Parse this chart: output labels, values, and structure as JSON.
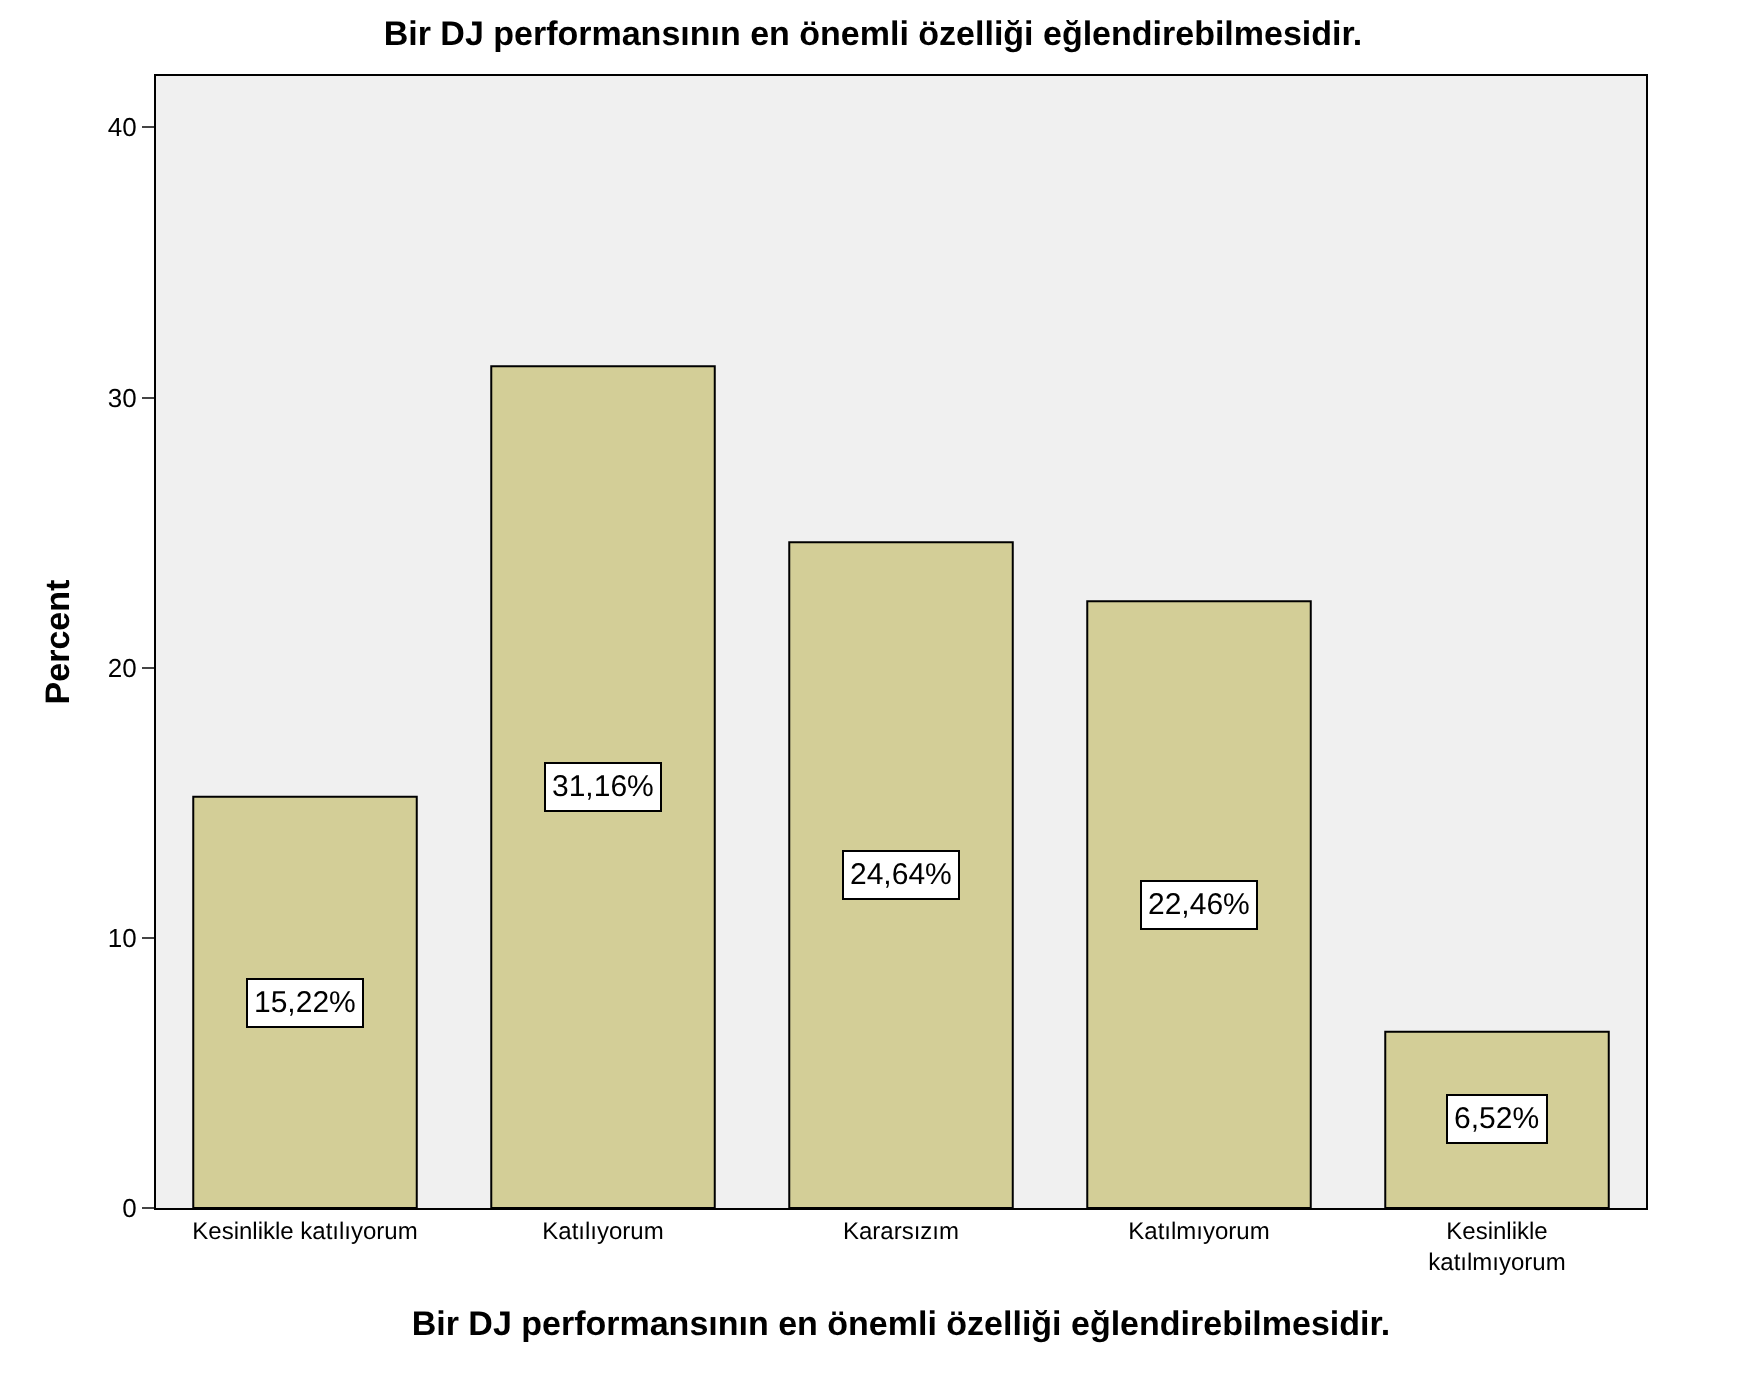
{
  "chart_data": {
    "type": "bar",
    "title": "Bir DJ performansının en önemli özelliği eğlendirebilmesidir.",
    "xlabel": "Bir DJ performansının en önemli özelliği eğlendirebilmesidir.",
    "ylabel": "Percent",
    "categories": [
      "Kesinlikle katılıyorum",
      "Katılıyorum",
      "Kararsızım",
      "Katılmıyorum",
      "Kesinlikle\nkatılmıyorum"
    ],
    "values": [
      15.22,
      31.16,
      24.64,
      22.46,
      6.52
    ],
    "value_labels": [
      "15,22%",
      "31,16%",
      "24,64%",
      "22,46%",
      "6,52%"
    ],
    "color": "#d3ce97",
    "ylim": [
      0,
      41.9
    ],
    "yticks": [
      0,
      10,
      20,
      30,
      40
    ],
    "grid": false,
    "legend": false
  }
}
